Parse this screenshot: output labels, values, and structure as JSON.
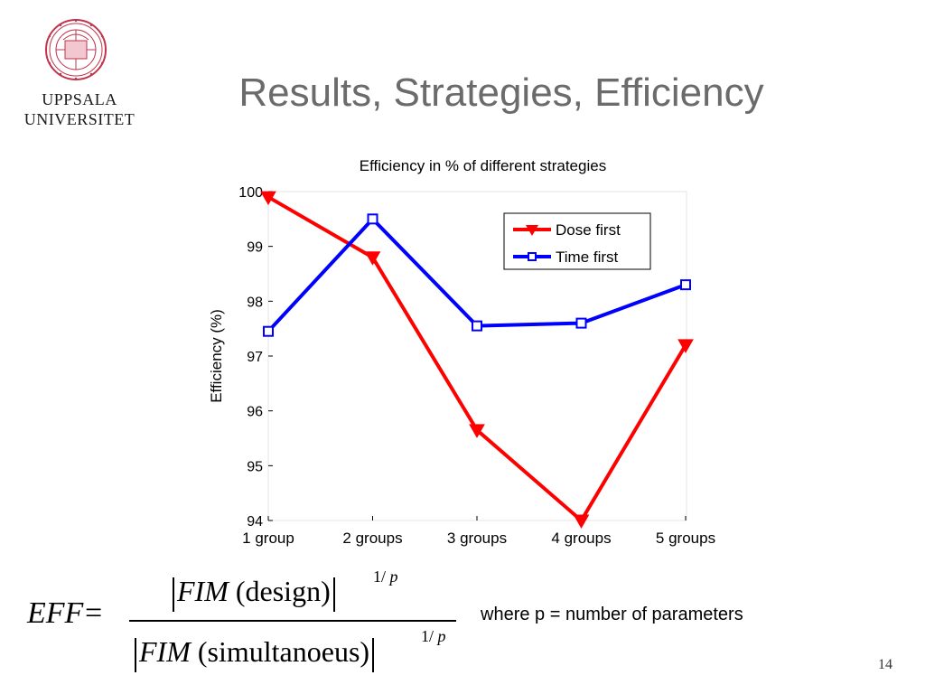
{
  "header": {
    "university_line1": "UPPSALA",
    "university_line2": "UNIVERSITET",
    "seal_icon": "uppsala-university-seal-icon",
    "seal_color": "#c0354b",
    "title": "Results, Strategies, Efficiency",
    "title_color": "#6b6b6b"
  },
  "chart_data": {
    "type": "line",
    "title": "Efficiency in % of different strategies",
    "xlabel": "",
    "ylabel": "Efficiency (%)",
    "categories": [
      "1 group",
      "2 groups",
      "3 groups",
      "4 groups",
      "5 groups"
    ],
    "ylim": [
      94,
      100
    ],
    "yticks": [
      94,
      95,
      96,
      97,
      98,
      99,
      100
    ],
    "series": [
      {
        "name": "Dose first",
        "values": [
          99.9,
          98.8,
          95.65,
          94.0,
          97.2
        ],
        "color": "#ff0000",
        "marker": "triangle-down"
      },
      {
        "name": "Time first",
        "values": [
          97.45,
          99.5,
          97.55,
          97.6,
          98.3
        ],
        "color": "#0000ff",
        "marker": "square"
      }
    ],
    "legend_position": "top-right",
    "grid": false
  },
  "formula": {
    "lhs": "EFF",
    "equals": "=",
    "fim": "FIM",
    "numerator_arg": "(design)",
    "denominator_arg": "(simultanoeus)",
    "exponent_num": "1/",
    "exponent_p": "p",
    "note": "where p = number of parameters"
  },
  "footer": {
    "page_number": "14"
  }
}
